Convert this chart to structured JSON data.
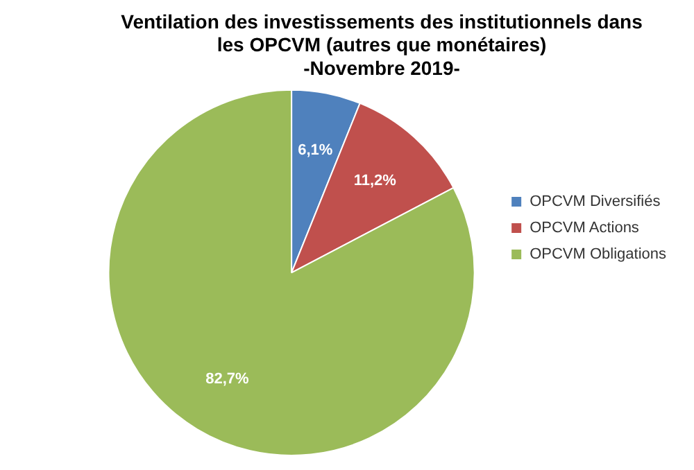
{
  "chart_data": {
    "type": "pie",
    "title": "Ventilation des investissements des institutionnels dans\nles OPCVM (autres que monétaires)\n-Novembre 2019-",
    "categories": [
      "OPCVM Diversifiés",
      "OPCVM Actions",
      "OPCVM Obligations"
    ],
    "values": [
      6.1,
      11.2,
      82.7
    ],
    "colors": [
      "#4f81bd",
      "#c0504d",
      "#9bbb59"
    ],
    "value_labels": [
      "6,1%",
      "11,2%",
      "82,7%"
    ],
    "legend": "right"
  }
}
